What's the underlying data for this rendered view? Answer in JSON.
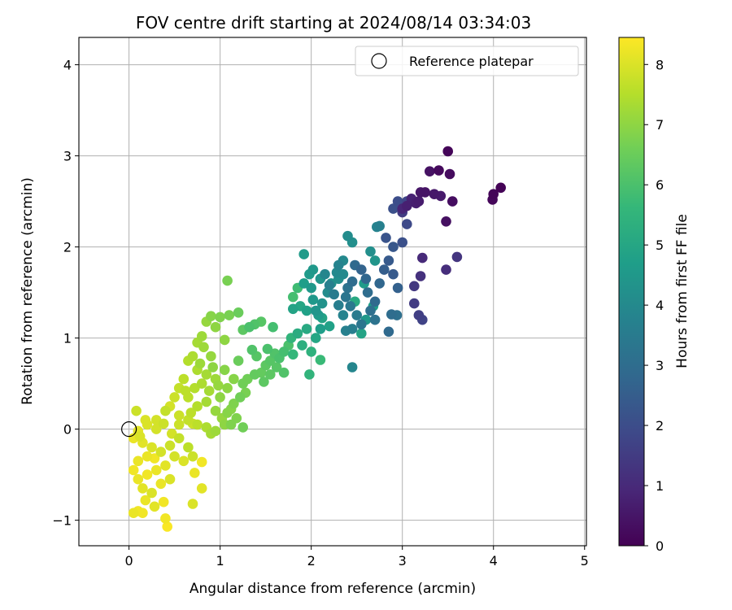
{
  "chart_data": {
    "type": "scatter",
    "title": "FOV centre drift starting at 2024/08/14 03:34:03",
    "xlabel": "Angular distance from reference (arcmin)",
    "ylabel": "Rotation from reference (arcmin)",
    "xlim": [
      -0.55,
      5.02
    ],
    "ylim": [
      -1.28,
      4.3
    ],
    "xticks": [
      0,
      1,
      2,
      3,
      4,
      5
    ],
    "yticks": [
      -1,
      0,
      1,
      2,
      3,
      4
    ],
    "grid": true,
    "legend": {
      "placement": "top-right",
      "entries": [
        {
          "label": "Reference platepar",
          "marker": "open-circle",
          "x": 0,
          "y": 0
        }
      ]
    },
    "colorbar": {
      "label": "Hours from first FF file",
      "colormap": "viridis",
      "range": [
        0,
        8.45
      ],
      "ticks": [
        0,
        1,
        2,
        3,
        4,
        5,
        6,
        7,
        8
      ],
      "stops": [
        "#440154",
        "#482878",
        "#3e4989",
        "#31688e",
        "#26828e",
        "#1f9e89",
        "#35b779",
        "#6ece58",
        "#b5de2b",
        "#fde725"
      ]
    },
    "series": [
      {
        "color_by": "hours",
        "points": [
          [
            3.5,
            3.05,
            0.1
          ],
          [
            3.52,
            2.8,
            0.25
          ],
          [
            3.3,
            2.83,
            0.4
          ],
          [
            3.4,
            2.84,
            0.2
          ],
          [
            4.08,
            2.65,
            0.05
          ],
          [
            4.0,
            2.58,
            0.1
          ],
          [
            3.99,
            2.52,
            0.15
          ],
          [
            3.55,
            2.5,
            0.3
          ],
          [
            3.48,
            2.28,
            0.35
          ],
          [
            3.2,
            2.6,
            0.5
          ],
          [
            3.25,
            2.6,
            0.45
          ],
          [
            3.35,
            2.58,
            0.55
          ],
          [
            3.42,
            2.56,
            0.6
          ],
          [
            3.18,
            2.5,
            0.65
          ],
          [
            3.15,
            2.48,
            0.7
          ],
          [
            3.05,
            2.45,
            0.75
          ],
          [
            3.1,
            2.53,
            0.8
          ],
          [
            3.0,
            2.42,
            0.9
          ],
          [
            3.22,
            1.88,
            1.0
          ],
          [
            3.6,
            1.89,
            1.3
          ],
          [
            3.48,
            1.75,
            1.1
          ],
          [
            3.2,
            1.68,
            1.2
          ],
          [
            3.13,
            1.57,
            1.4
          ],
          [
            3.13,
            1.38,
            1.5
          ],
          [
            3.18,
            1.25,
            1.6
          ],
          [
            3.22,
            1.2,
            1.7
          ],
          [
            3.0,
            2.38,
            1.5
          ],
          [
            2.95,
            2.5,
            2.0
          ],
          [
            3.05,
            2.5,
            1.8
          ],
          [
            2.9,
            2.42,
            2.1
          ],
          [
            3.05,
            2.25,
            1.9
          ],
          [
            2.82,
            2.1,
            2.2
          ],
          [
            2.9,
            2.0,
            2.3
          ],
          [
            3.0,
            2.05,
            2.1
          ],
          [
            2.85,
            1.85,
            2.4
          ],
          [
            2.8,
            1.75,
            2.5
          ],
          [
            2.9,
            1.7,
            2.4
          ],
          [
            2.95,
            1.55,
            2.6
          ],
          [
            2.75,
            1.6,
            2.8
          ],
          [
            2.7,
            1.4,
            2.9
          ],
          [
            2.88,
            1.26,
            3.0
          ],
          [
            2.94,
            1.25,
            3.1
          ],
          [
            2.85,
            1.07,
            2.9
          ],
          [
            2.7,
            1.2,
            3.2
          ],
          [
            2.65,
            1.3,
            3.1
          ],
          [
            2.62,
            1.5,
            3.0
          ],
          [
            2.6,
            1.65,
            2.8
          ],
          [
            2.55,
            1.75,
            2.7
          ],
          [
            2.48,
            1.8,
            2.9
          ],
          [
            2.45,
            1.62,
            3.0
          ],
          [
            2.4,
            1.55,
            3.2
          ],
          [
            2.38,
            1.45,
            3.3
          ],
          [
            2.43,
            1.35,
            3.4
          ],
          [
            2.5,
            1.25,
            3.5
          ],
          [
            2.55,
            1.15,
            3.3
          ],
          [
            2.45,
            1.1,
            3.6
          ],
          [
            2.38,
            1.08,
            3.7
          ],
          [
            2.35,
            1.25,
            3.8
          ],
          [
            2.3,
            1.36,
            3.6
          ],
          [
            2.25,
            1.48,
            3.5
          ],
          [
            2.2,
            1.58,
            3.7
          ],
          [
            2.15,
            1.7,
            3.9
          ],
          [
            2.3,
            1.8,
            3.8
          ],
          [
            2.35,
            1.85,
            4.0
          ],
          [
            2.4,
            2.12,
            4.1
          ],
          [
            2.45,
            2.05,
            4.2
          ],
          [
            2.28,
            1.72,
            4.0
          ],
          [
            2.18,
            1.5,
            4.1
          ],
          [
            2.12,
            1.38,
            4.3
          ],
          [
            2.05,
            1.3,
            4.4
          ],
          [
            2.0,
            1.55,
            4.5
          ],
          [
            1.98,
            1.7,
            4.6
          ],
          [
            1.92,
            1.6,
            4.7
          ],
          [
            2.02,
            1.42,
            4.5
          ],
          [
            1.95,
            1.3,
            4.8
          ],
          [
            1.88,
            1.35,
            5.0
          ],
          [
            1.8,
            1.32,
            4.9
          ],
          [
            2.08,
            1.25,
            4.6
          ],
          [
            2.1,
            1.1,
            4.7
          ],
          [
            2.2,
            1.13,
            4.8
          ],
          [
            2.12,
            1.22,
            4.9
          ],
          [
            2.05,
            1.0,
            5.0
          ],
          [
            1.95,
            1.1,
            5.1
          ],
          [
            1.85,
            1.05,
            5.2
          ],
          [
            1.9,
            0.92,
            5.3
          ],
          [
            2.0,
            0.85,
            5.4
          ],
          [
            1.78,
            1.0,
            5.5
          ],
          [
            1.8,
            0.82,
            5.6
          ],
          [
            1.98,
            0.6,
            5.5
          ],
          [
            2.1,
            0.76,
            5.7
          ],
          [
            2.45,
            0.68,
            3.9
          ],
          [
            2.72,
            2.22,
            3.8
          ],
          [
            2.75,
            2.23,
            3.7
          ],
          [
            2.65,
            1.95,
            4.2
          ],
          [
            2.7,
            1.85,
            4.4
          ],
          [
            2.58,
            1.6,
            4.6
          ],
          [
            2.68,
            1.35,
            4.7
          ],
          [
            2.6,
            1.2,
            4.5
          ],
          [
            2.55,
            1.05,
            4.9
          ],
          [
            2.48,
            1.4,
            5.1
          ],
          [
            1.85,
            1.55,
            5.8
          ],
          [
            1.8,
            1.45,
            5.9
          ],
          [
            1.75,
            0.92,
            6.0
          ],
          [
            1.7,
            0.85,
            5.9
          ],
          [
            1.6,
            0.83,
            6.1
          ],
          [
            1.55,
            0.75,
            6.2
          ],
          [
            1.65,
            0.78,
            6.0
          ],
          [
            1.5,
            0.7,
            6.3
          ],
          [
            1.45,
            0.62,
            6.4
          ],
          [
            1.35,
            0.87,
            6.1
          ],
          [
            1.4,
            0.8,
            6.2
          ],
          [
            1.32,
            1.12,
            6.0
          ],
          [
            1.38,
            1.15,
            6.1
          ],
          [
            1.45,
            1.18,
            6.2
          ],
          [
            1.25,
            1.09,
            6.3
          ],
          [
            1.2,
            0.75,
            6.5
          ],
          [
            1.3,
            0.55,
            6.6
          ],
          [
            1.28,
            0.4,
            6.7
          ],
          [
            1.22,
            0.35,
            6.6
          ],
          [
            1.15,
            0.28,
            6.8
          ],
          [
            1.08,
            0.18,
            6.9
          ],
          [
            1.12,
            0.05,
            6.8
          ],
          [
            1.25,
            0.02,
            6.6
          ],
          [
            1.2,
            1.28,
            6.5
          ],
          [
            1.1,
            1.25,
            6.7
          ],
          [
            1.08,
            1.63,
            6.7
          ],
          [
            1.0,
            1.23,
            6.8
          ],
          [
            0.9,
            1.24,
            6.9
          ],
          [
            0.95,
            1.12,
            7.0
          ],
          [
            1.05,
            0.98,
            7.0
          ],
          [
            0.85,
            1.18,
            7.1
          ],
          [
            0.8,
            1.02,
            7.2
          ],
          [
            0.75,
            0.95,
            7.3
          ],
          [
            0.82,
            0.9,
            7.2
          ],
          [
            0.9,
            0.8,
            7.1
          ],
          [
            0.7,
            0.8,
            7.4
          ],
          [
            0.65,
            0.75,
            7.5
          ],
          [
            0.75,
            0.65,
            7.4
          ],
          [
            0.85,
            0.6,
            7.3
          ],
          [
            0.95,
            0.55,
            7.2
          ],
          [
            0.6,
            0.55,
            7.6
          ],
          [
            0.55,
            0.45,
            7.7
          ],
          [
            0.65,
            0.35,
            7.6
          ],
          [
            0.75,
            0.25,
            7.5
          ],
          [
            0.85,
            0.3,
            7.3
          ],
          [
            0.95,
            0.2,
            7.1
          ],
          [
            1.0,
            0.35,
            7.0
          ],
          [
            0.5,
            0.35,
            7.8
          ],
          [
            0.45,
            0.25,
            7.9
          ],
          [
            0.4,
            0.2,
            7.7
          ],
          [
            0.55,
            0.15,
            7.8
          ],
          [
            0.65,
            0.1,
            7.7
          ],
          [
            0.75,
            0.05,
            7.6
          ],
          [
            0.85,
            0.02,
            7.4
          ],
          [
            0.9,
            -0.05,
            7.3
          ],
          [
            1.05,
            0.05,
            7.0
          ],
          [
            0.3,
            0.1,
            7.9
          ],
          [
            0.2,
            0.05,
            8.0
          ],
          [
            0.1,
            -0.02,
            8.1
          ],
          [
            0.05,
            -0.1,
            8.2
          ],
          [
            0.15,
            -0.15,
            8.1
          ],
          [
            0.25,
            -0.2,
            8.0
          ],
          [
            0.35,
            -0.25,
            7.9
          ],
          [
            0.45,
            -0.18,
            7.8
          ],
          [
            0.55,
            -0.1,
            7.7
          ],
          [
            0.65,
            -0.2,
            7.6
          ],
          [
            0.7,
            -0.3,
            7.8
          ],
          [
            0.6,
            -0.35,
            8.0
          ],
          [
            0.5,
            -0.3,
            7.9
          ],
          [
            0.4,
            -0.4,
            8.1
          ],
          [
            0.3,
            -0.45,
            8.2
          ],
          [
            0.2,
            -0.5,
            8.3
          ],
          [
            0.1,
            -0.55,
            8.2
          ],
          [
            0.05,
            -0.45,
            8.3
          ],
          [
            0.15,
            -0.65,
            8.1
          ],
          [
            0.25,
            -0.7,
            8.0
          ],
          [
            0.35,
            -0.6,
            8.2
          ],
          [
            0.45,
            -0.55,
            8.0
          ],
          [
            0.38,
            -0.8,
            8.3
          ],
          [
            0.28,
            -0.85,
            8.1
          ],
          [
            0.18,
            -0.78,
            8.2
          ],
          [
            0.1,
            -0.9,
            8.3
          ],
          [
            0.05,
            -0.92,
            8.2
          ],
          [
            0.15,
            -0.92,
            8.3
          ],
          [
            0.4,
            -0.98,
            8.3
          ],
          [
            0.42,
            -1.07,
            8.4
          ],
          [
            0.7,
            -0.82,
            8.0
          ],
          [
            0.8,
            -0.65,
            8.1
          ],
          [
            0.8,
            -0.36,
            8.3
          ],
          [
            0.72,
            -0.48,
            8.2
          ],
          [
            0.2,
            -0.3,
            8.2
          ],
          [
            0.28,
            -0.32,
            8.3
          ],
          [
            0.1,
            -0.35,
            8.2
          ],
          [
            0.12,
            -0.08,
            8.0
          ],
          [
            0.08,
            0.2,
            7.8
          ],
          [
            0.18,
            0.1,
            8.0
          ],
          [
            0.3,
            0.0,
            7.9
          ],
          [
            0.38,
            0.06,
            7.8
          ],
          [
            0.47,
            -0.05,
            7.9
          ],
          [
            0.55,
            0.05,
            7.8
          ],
          [
            0.62,
            0.42,
            7.6
          ],
          [
            0.72,
            0.45,
            7.5
          ],
          [
            0.8,
            0.5,
            7.4
          ],
          [
            0.88,
            0.42,
            7.3
          ],
          [
            0.98,
            0.48,
            7.1
          ],
          [
            1.08,
            0.45,
            7.0
          ],
          [
            1.15,
            0.55,
            6.9
          ],
          [
            1.05,
            0.65,
            6.9
          ],
          [
            0.92,
            0.68,
            7.0
          ],
          [
            0.78,
            0.72,
            7.2
          ],
          [
            0.7,
            0.06,
            7.8
          ],
          [
            0.68,
            0.18,
            7.6
          ],
          [
            0.95,
            -0.02,
            7.2
          ],
          [
            1.02,
            0.12,
            7.1
          ],
          [
            1.12,
            0.22,
            6.9
          ],
          [
            1.18,
            0.12,
            6.8
          ],
          [
            1.25,
            0.5,
            6.6
          ],
          [
            1.38,
            0.6,
            6.4
          ],
          [
            1.48,
            0.52,
            6.3
          ],
          [
            1.55,
            0.6,
            6.3
          ],
          [
            1.62,
            0.68,
            6.2
          ],
          [
            1.7,
            0.62,
            6.1
          ],
          [
            1.52,
            0.88,
            6.0
          ],
          [
            1.58,
            1.12,
            5.9
          ],
          [
            1.92,
            1.92,
            4.6
          ],
          [
            2.02,
            1.75,
            4.5
          ],
          [
            2.1,
            1.65,
            4.4
          ],
          [
            2.22,
            1.6,
            4.3
          ],
          [
            2.3,
            1.65,
            4.2
          ],
          [
            2.35,
            1.7,
            4.0
          ]
        ]
      }
    ]
  }
}
